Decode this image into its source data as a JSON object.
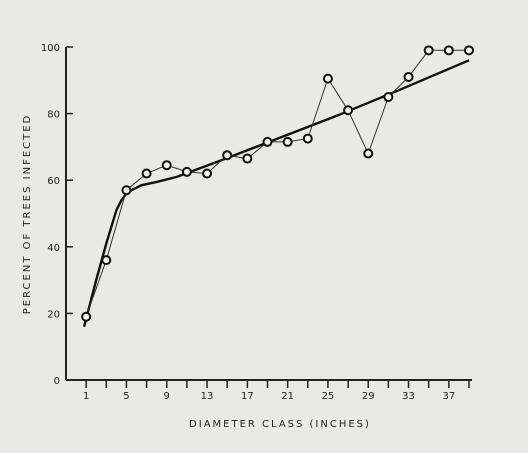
{
  "chart_data": {
    "type": "line",
    "title": "",
    "xlabel": "DIAMETER CLASS (INCHES)",
    "ylabel": "PERCENT OF TREES INFECTED",
    "x_ticks": [
      1,
      5,
      9,
      13,
      17,
      21,
      25,
      29,
      33,
      37
    ],
    "y_ticks": [
      0,
      20,
      40,
      60,
      80,
      100
    ],
    "xlim": [
      -1,
      39.3
    ],
    "ylim": [
      0,
      100
    ],
    "grid": false,
    "legend": "none",
    "series": [
      {
        "type": "line-with-markers",
        "x": [
          1,
          3,
          5,
          7,
          9,
          11,
          13,
          15,
          17,
          19,
          21,
          23,
          25,
          27,
          29,
          31,
          33,
          35,
          37,
          39
        ],
        "y": [
          19,
          36,
          57,
          62,
          64.5,
          62.5,
          62,
          67.5,
          66.5,
          71.5,
          71.5,
          72.5,
          90.5,
          81,
          68,
          85,
          91,
          99,
          99,
          99
        ]
      },
      {
        "type": "fitted-curve",
        "x": [
          0.8,
          2,
          3,
          4,
          4.5,
          5,
          5.5,
          6.5,
          8,
          10,
          14,
          20,
          26,
          32,
          39
        ],
        "y": [
          16,
          30,
          41,
          51,
          54,
          56,
          57,
          58.5,
          59.5,
          61,
          65.5,
          72.5,
          79.5,
          87,
          96
        ]
      }
    ]
  }
}
